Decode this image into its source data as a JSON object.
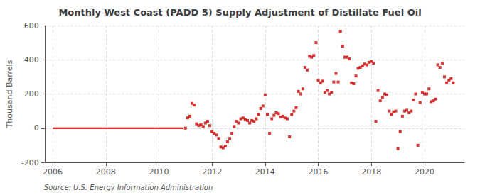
{
  "chart_data": {
    "type": "scatter",
    "title": "Monthly West Coast (PADD 5) Supply Adjustment of Distillate Fuel Oil",
    "ylabel": "Thousand Barrels",
    "annotations": [
      "Source: U.S. Energy Information Administration"
    ],
    "xlim": [
      2005.7,
      2021.5
    ],
    "xticks": [
      2006,
      2008,
      2010,
      2012,
      2014,
      2016,
      2018,
      2020
    ],
    "ylim": [
      -200,
      600
    ],
    "yticks": [
      -200,
      0,
      200,
      400,
      600
    ],
    "grid": true,
    "series": [
      {
        "type": "line",
        "color": "#cc0000",
        "line_style": "solid",
        "x": [
          2006.0,
          2010.917
        ],
        "values": [
          0,
          0
        ]
      },
      {
        "type": "scatter",
        "color": "#cc0000",
        "marker": "square",
        "x": [
          2011.0,
          2011.083,
          2011.167,
          2011.25,
          2011.333,
          2011.417,
          2011.5,
          2011.583,
          2011.667,
          2011.75,
          2011.833,
          2011.917,
          2012.0,
          2012.083,
          2012.167,
          2012.25,
          2012.333,
          2012.417,
          2012.5,
          2012.583,
          2012.667,
          2012.75,
          2012.833,
          2012.917,
          2013.0,
          2013.083,
          2013.167,
          2013.25,
          2013.333,
          2013.417,
          2013.5,
          2013.583,
          2013.667,
          2013.75,
          2013.833,
          2013.917,
          2014.0,
          2014.083,
          2014.167,
          2014.25,
          2014.333,
          2014.417,
          2014.5,
          2014.583,
          2014.667,
          2014.75,
          2014.833,
          2014.917,
          2015.0,
          2015.083,
          2015.167,
          2015.25,
          2015.333,
          2015.417,
          2015.5,
          2015.583,
          2015.667,
          2015.75,
          2015.833,
          2015.917,
          2016.0,
          2016.083,
          2016.167,
          2016.25,
          2016.333,
          2016.417,
          2016.5,
          2016.583,
          2016.667,
          2016.75,
          2016.833,
          2016.917,
          2017.0,
          2017.083,
          2017.167,
          2017.25,
          2017.333,
          2017.417,
          2017.5,
          2017.583,
          2017.667,
          2017.75,
          2017.833,
          2017.917,
          2018.0,
          2018.083,
          2018.167,
          2018.25,
          2018.333,
          2018.417,
          2018.5,
          2018.583,
          2018.667,
          2018.75,
          2018.833,
          2018.917,
          2019.0,
          2019.083,
          2019.167,
          2019.25,
          2019.333,
          2019.417,
          2019.5,
          2019.583,
          2019.667,
          2019.75,
          2019.833,
          2019.917,
          2020.0,
          2020.083,
          2020.167,
          2020.25,
          2020.333,
          2020.417,
          2020.5,
          2020.583,
          2020.667,
          2020.75,
          2020.833,
          2020.917,
          2021.0,
          2021.083
        ],
        "values": [
          0,
          60,
          70,
          145,
          135,
          25,
          15,
          20,
          10,
          30,
          40,
          15,
          -20,
          -30,
          -40,
          -60,
          -110,
          -115,
          -105,
          -80,
          -60,
          -30,
          10,
          40,
          30,
          55,
          60,
          50,
          45,
          30,
          45,
          40,
          55,
          80,
          115,
          130,
          195,
          80,
          -30,
          55,
          75,
          90,
          85,
          65,
          70,
          60,
          55,
          -50,
          80,
          100,
          120,
          215,
          200,
          230,
          355,
          340,
          420,
          415,
          425,
          500,
          280,
          265,
          275,
          210,
          220,
          200,
          210,
          270,
          320,
          270,
          565,
          480,
          415,
          415,
          405,
          265,
          260,
          305,
          350,
          355,
          365,
          375,
          370,
          385,
          390,
          380,
          40,
          220,
          160,
          180,
          200,
          195,
          100,
          80,
          95,
          100,
          -120,
          -20,
          70,
          100,
          105,
          90,
          100,
          165,
          200,
          -100,
          150,
          210,
          200,
          200,
          230,
          155,
          160,
          170,
          370,
          355,
          380,
          300,
          265,
          280,
          290,
          265
        ]
      }
    ]
  }
}
